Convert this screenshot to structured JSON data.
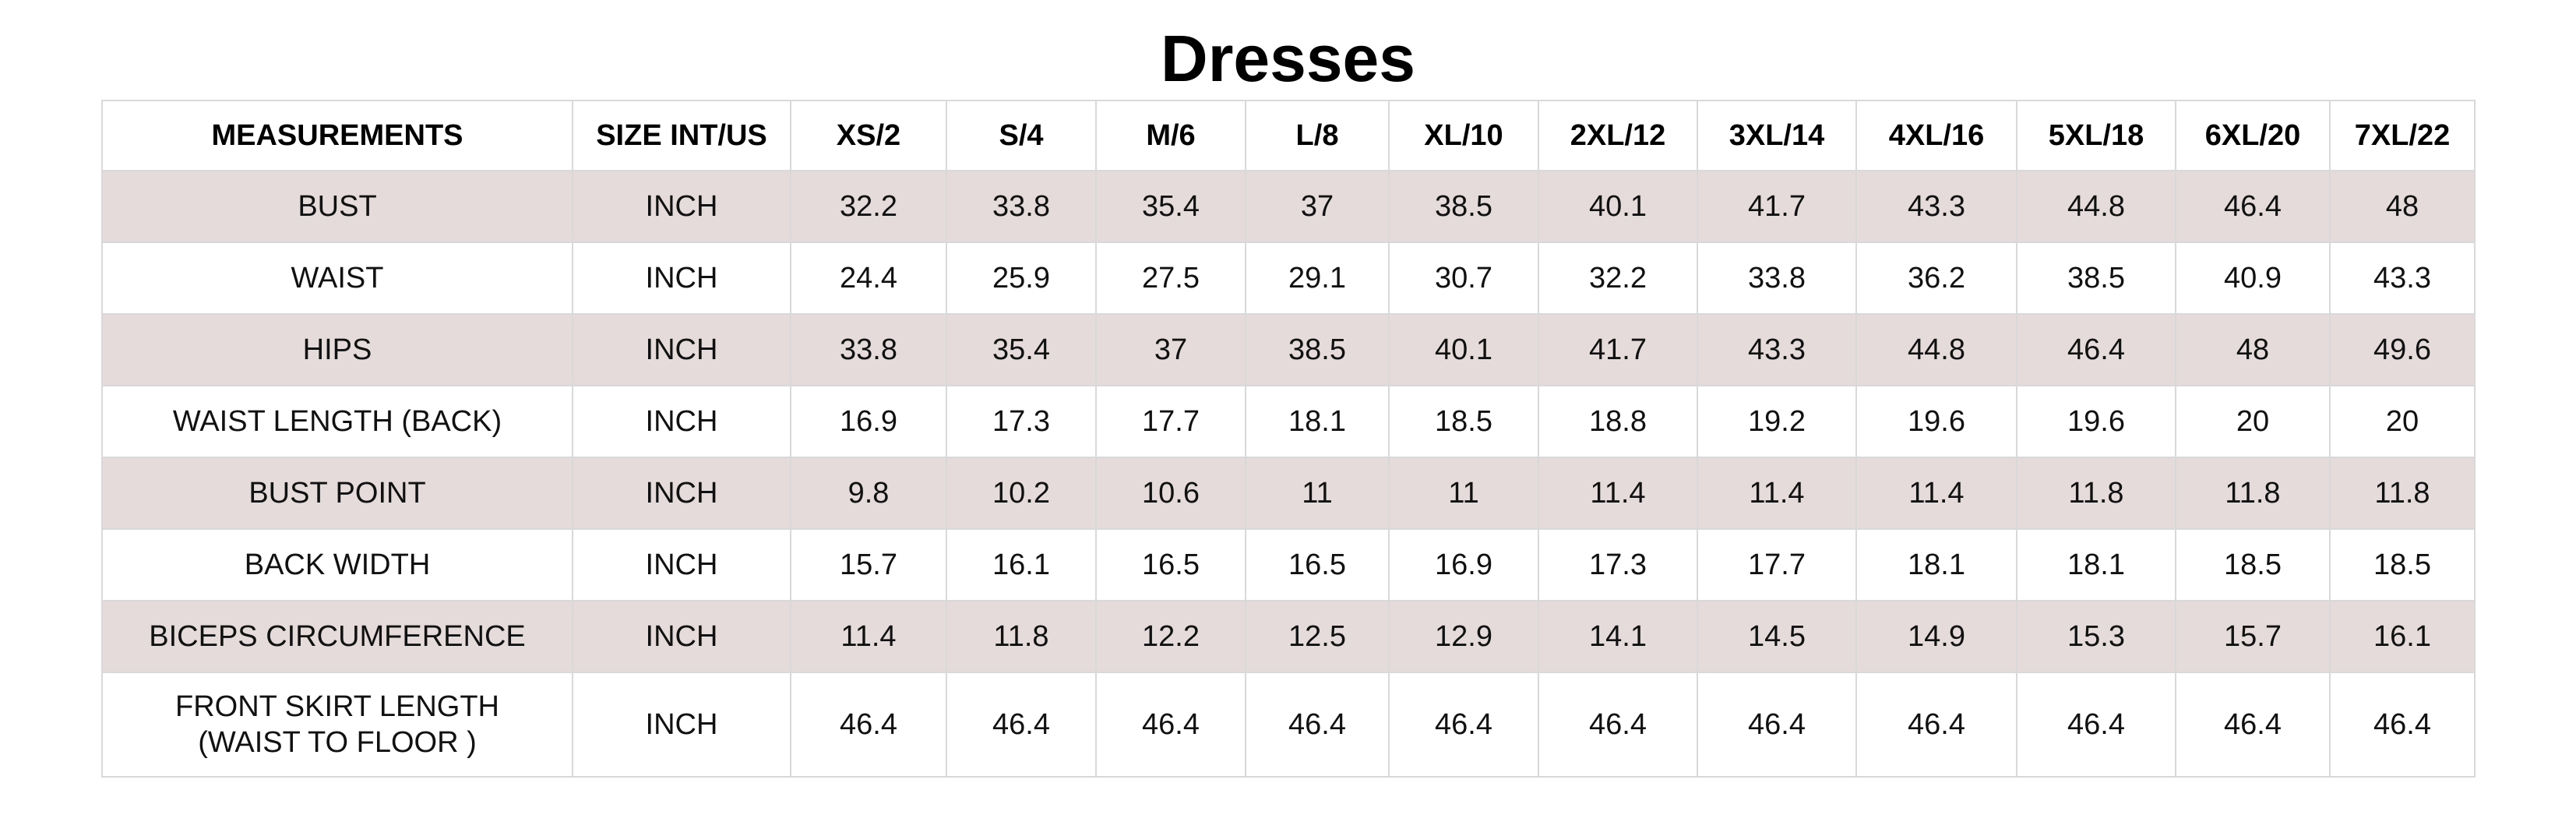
{
  "title": "Dresses",
  "table": {
    "headers": [
      "MEASUREMENTS",
      "SIZE INT/US",
      "XS/2",
      "S/4",
      "M/6",
      "L/8",
      "XL/10",
      "2XL/12",
      "3XL/14",
      "4XL/16",
      "5XL/18",
      "6XL/20",
      "7XL/22"
    ],
    "rows": [
      {
        "label": "BUST",
        "unit": "INCH",
        "values": [
          "32.2",
          "33.8",
          "35.4",
          "37",
          "38.5",
          "40.1",
          "41.7",
          "43.3",
          "44.8",
          "46.4",
          "48"
        ]
      },
      {
        "label": "WAIST",
        "unit": "INCH",
        "values": [
          "24.4",
          "25.9",
          "27.5",
          "29.1",
          "30.7",
          "32.2",
          "33.8",
          "36.2",
          "38.5",
          "40.9",
          "43.3"
        ]
      },
      {
        "label": "HIPS",
        "unit": "INCH",
        "values": [
          "33.8",
          "35.4",
          "37",
          "38.5",
          "40.1",
          "41.7",
          "43.3",
          "44.8",
          "46.4",
          "48",
          "49.6"
        ]
      },
      {
        "label": "WAIST LENGTH (BACK)",
        "unit": "INCH",
        "values": [
          "16.9",
          "17.3",
          "17.7",
          "18.1",
          "18.5",
          "18.8",
          "19.2",
          "19.6",
          "19.6",
          "20",
          "20"
        ]
      },
      {
        "label": "BUST POINT",
        "unit": "INCH",
        "values": [
          "9.8",
          "10.2",
          "10.6",
          "11",
          "11",
          "11.4",
          "11.4",
          "11.4",
          "11.8",
          "11.8",
          "11.8"
        ]
      },
      {
        "label": "BACK WIDTH",
        "unit": "INCH",
        "values": [
          "15.7",
          "16.1",
          "16.5",
          "16.5",
          "16.9",
          "17.3",
          "17.7",
          "18.1",
          "18.1",
          "18.5",
          "18.5"
        ]
      },
      {
        "label": "BICEPS CIRCUMFERENCE",
        "unit": "INCH",
        "values": [
          "11.4",
          "11.8",
          "12.2",
          "12.5",
          "12.9",
          "14.1",
          "14.5",
          "14.9",
          "15.3",
          "15.7",
          "16.1"
        ]
      },
      {
        "label_lines": [
          "FRONT SKIRT LENGTH",
          "(WAIST TO FLOOR )"
        ],
        "unit": "INCH",
        "values": [
          "46.4",
          "46.4",
          "46.4",
          "46.4",
          "46.4",
          "46.4",
          "46.4",
          "46.4",
          "46.4",
          "46.4",
          "46.4"
        ]
      }
    ]
  },
  "colors": {
    "shaded_row": "#e5dbdb",
    "plain_row": "#ffffff",
    "border": "#d9d9d9",
    "text": "#111111"
  }
}
